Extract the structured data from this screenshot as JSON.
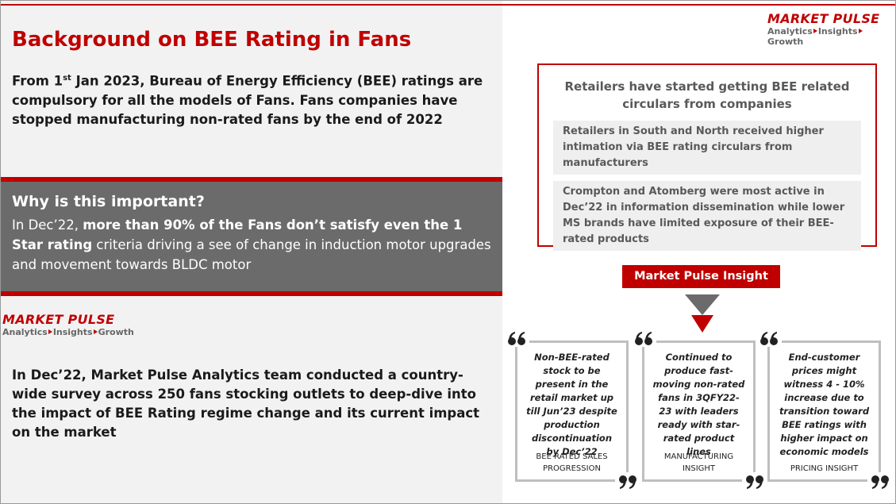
{
  "title": "Background on BEE Rating in Fans",
  "intro": {
    "lead": "From 1",
    "sup": "st",
    "rest": " Jan 2023, Bureau of Energy Efficiency (BEE) ratings are compulsory for all the models of Fans. Fans companies have stopped manufacturing non-rated fans by the end of 2022"
  },
  "why": {
    "heading": "Why is this important?",
    "lead": "In Dec’22, ",
    "bold": "more than 90% of the Fans don’t satisfy even the 1 Star rating",
    "rest": " criteria driving a see of change in induction motor upgrades and movement towards BLDC motor"
  },
  "logo_left": {
    "name": "MARKET PULSE",
    "tagline": [
      "Analytics",
      "Insights",
      "Growth"
    ]
  },
  "logo_right": {
    "name": "MARKET PULSE",
    "tagline": [
      "Analytics",
      "Insights",
      "Growth"
    ]
  },
  "survey": "In Dec’22, Market Pulse Analytics team conducted a country-wide survey across 250 fans stocking outlets to deep-dive into the impact of BEE Rating regime change and its current impact on the market",
  "retailers": {
    "title": "Retailers have started getting BEE related circulars from companies",
    "items": [
      "Retailers in South and North received higher intimation via BEE rating circulars from manufacturers",
      "Crompton and Atomberg were most active in Dec’22 in information dissemination while lower MS brands have limited exposure of their BEE-rated products"
    ]
  },
  "insight_label": "Market Pulse Insight",
  "insights": [
    {
      "text": "Non-BEE-rated stock to be present in the retail market up till Jun’23 despite production discontinuation by Dec’22",
      "label": "BEE RATED SALES PROGRESSION"
    },
    {
      "text": "Continued to produce fast-moving non-rated fans in 3QFY22-23 with leaders ready with star-rated product lines",
      "label": "MANUFACTURING INSIGHT"
    },
    {
      "text": "End-customer prices might witness 4 - 10% increase due to transition toward BEE ratings with higher impact on economic models",
      "label": "PRICING INSIGHT"
    }
  ]
}
